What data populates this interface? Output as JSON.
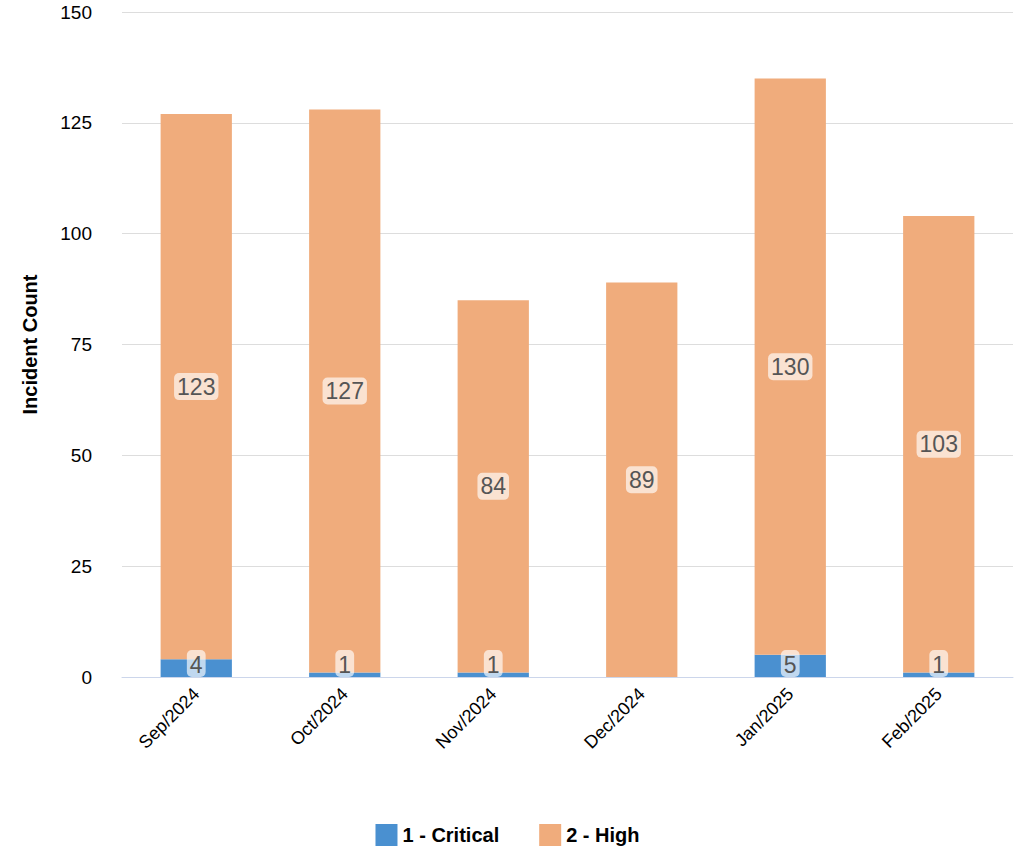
{
  "chart_data": {
    "type": "bar",
    "y_label": "Incident Count",
    "categories": [
      "Sep/2024",
      "Oct/2024",
      "Nov/2024",
      "Dec/2024",
      "Jan/2025",
      "Feb/2025"
    ],
    "series": [
      {
        "name": "1 - Critical",
        "color": "#4a90d0",
        "values": [
          4,
          1,
          1,
          null,
          5,
          1
        ]
      },
      {
        "name": "2 - High",
        "color": "#f0ac7c",
        "values": [
          123,
          127,
          84,
          89,
          130,
          103
        ]
      }
    ],
    "ylim": [
      0,
      150
    ],
    "yticks": [
      0,
      25,
      50,
      75,
      100,
      125,
      150
    ],
    "grid": true,
    "stacked": true,
    "data_labels": true,
    "legend": "bottom"
  }
}
